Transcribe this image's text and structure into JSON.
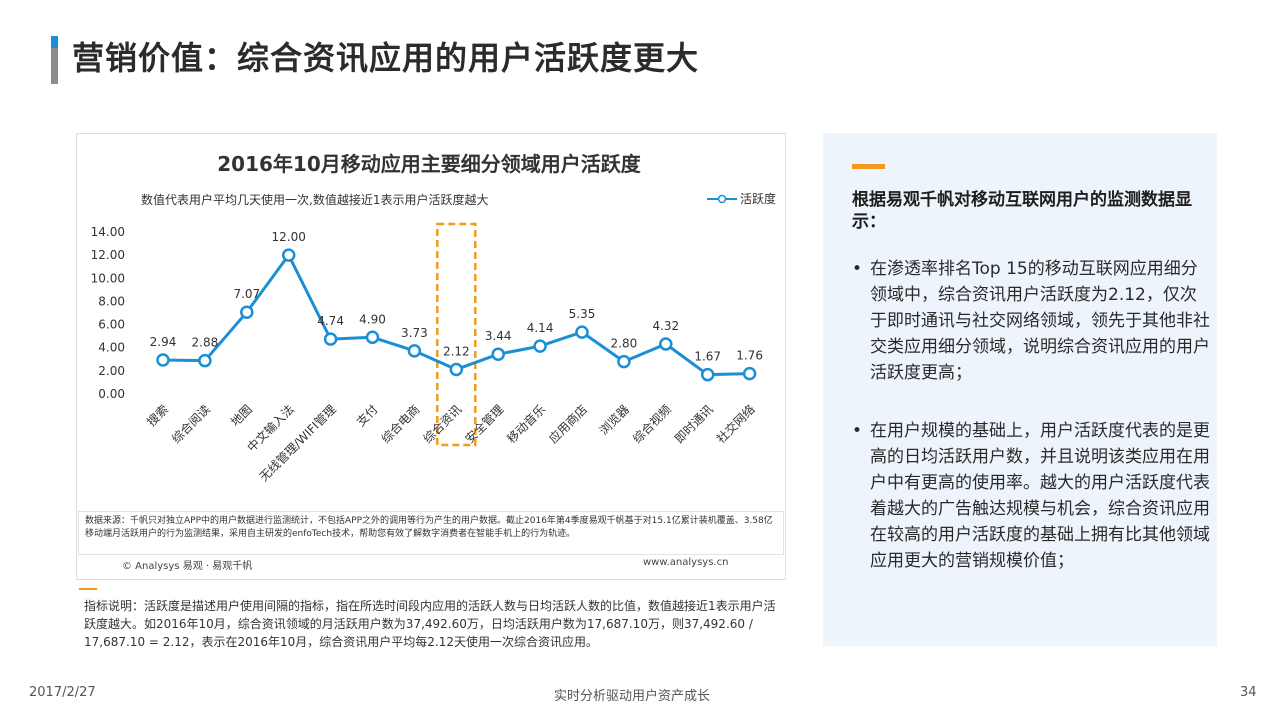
{
  "page": {
    "title": "营销价值：综合资讯应用的用户活跃度更大",
    "footer_date": "2017/2/27",
    "footer_center": "实时分析驱动用户资产成长",
    "page_number": "34"
  },
  "chart_data": {
    "type": "line",
    "title": "2016年10月移动应用主要细分领域用户活跃度",
    "subtitle": "数值代表用户平均几天使用一次,数值越接近1表示用户活跃度越大",
    "categories": [
      "搜索",
      "综合阅读",
      "地图",
      "中文输入法",
      "无线管理/WIFI管理",
      "支付",
      "综合电商",
      "综合资讯",
      "安全管理",
      "移动音乐",
      "应用商店",
      "浏览器",
      "综合视频",
      "即时通讯",
      "社交网络"
    ],
    "series": [
      {
        "name": "活跃度",
        "values": [
          2.94,
          2.88,
          7.07,
          12.0,
          4.74,
          4.9,
          3.73,
          2.12,
          3.44,
          4.14,
          5.35,
          2.8,
          4.32,
          1.67,
          1.76
        ],
        "color": "#1a8fd6"
      }
    ],
    "value_labels": [
      "2.94",
      "2.88",
      "7.07",
      "12.00",
      "4.74",
      "4.90",
      "3.73",
      "2.12",
      "3.44",
      "4.14",
      "5.35",
      "2.80",
      "4.32",
      "1.67",
      "1.76"
    ],
    "y_ticks": [
      "0.00",
      "2.00",
      "4.00",
      "6.00",
      "8.00",
      "10.00",
      "12.00",
      "14.00"
    ],
    "ylim": [
      0,
      14
    ],
    "highlight_category": "综合资讯",
    "highlight_color": "#f39a1e",
    "legend_position": "top-right",
    "grid": false
  },
  "chart_footer": {
    "source": "数据来源：千帆只对独立APP中的用户数据进行监测统计，不包括APP之外的调用等行为产生的用户数据。截止2016年第4季度易观千帆基于对15.1亿累计装机覆盖、3.58亿移动端月活跃用户的行为监测结果，采用自主研发的enfoTech技术，帮助您有效了解数字消费者在智能手机上的行为轨迹。",
    "copyright": "© Analysys 易观 · 易观千帆",
    "website": "www.analysys.cn"
  },
  "note": "指标说明：活跃度是描述用户使用间隔的指标，指在所选时间段内应用的活跃人数与日均活跃人数的比值，数值越接近1表示用户活跃度越大。如2016年10月，综合资讯领域的月活跃用户数为37,492.60万，日均活跃用户数为17,687.10万，则37,492.60 / 17,687.10 = 2.12，表示在2016年10月，综合资讯用户平均每2.12天使用一次综合资讯应用。",
  "panel": {
    "heading": "根据易观千帆对移动互联网用户的监测数据显示：",
    "bullet_symbol": "•",
    "bullets": [
      "在渗透率排名Top 15的移动互联网应用细分领域中，综合资讯用户活跃度为2.12，仅次于即时通讯与社交网络领域，领先于其他非社交类应用细分领域，说明综合资讯应用的用户活跃度更高；",
      "在用户规模的基础上，用户活跃度代表的是更高的日均活跃用户数，并且说明该类应用在用户中有更高的使用率。越大的用户活跃度代表着越大的广告触达规模与机会，综合资讯应用在较高的用户活跃度的基础上拥有比其他领域应用更大的营销规模价值；"
    ]
  }
}
